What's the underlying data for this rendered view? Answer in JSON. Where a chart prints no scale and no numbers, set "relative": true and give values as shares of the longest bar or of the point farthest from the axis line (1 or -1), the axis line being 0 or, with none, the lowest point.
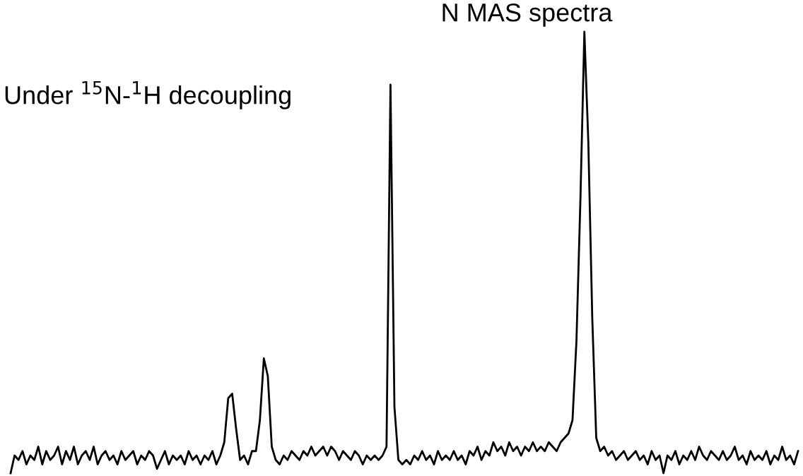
{
  "chart_data": {
    "type": "line",
    "title": "N MAS spectra",
    "subtitle": "Under $^{15}$N-$^{1}$H decoupling",
    "relative": true,
    "categories": [
      null,
      null,
      null,
      null,
      null,
      null,
      null,
      null,
      null,
      null,
      null,
      null,
      null,
      null,
      null,
      null,
      null,
      null,
      null,
      null,
      null,
      null,
      null,
      null,
      null,
      null,
      null,
      null,
      null,
      null,
      null,
      null,
      null,
      null,
      null,
      null,
      null,
      null,
      null,
      null,
      null,
      null,
      null,
      null,
      null,
      null,
      null,
      null,
      null,
      null,
      null,
      null,
      null,
      null,
      null,
      null,
      null,
      null,
      null,
      null,
      null,
      null,
      null,
      null,
      null,
      null,
      null,
      null,
      null,
      null,
      null,
      null,
      null,
      null,
      null,
      null,
      null,
      null,
      null,
      null,
      null,
      null,
      null,
      null,
      null,
      null,
      null,
      null,
      null,
      null,
      null,
      null,
      null,
      null,
      null,
      null,
      null,
      null,
      null,
      null,
      null,
      null,
      null,
      null,
      null,
      null,
      null,
      null,
      null,
      null,
      null,
      null,
      null,
      null,
      null,
      null,
      null,
      null,
      null,
      null,
      null,
      null,
      null,
      null,
      null,
      null,
      null,
      null,
      null,
      null,
      null,
      null,
      null,
      null,
      null,
      null,
      null,
      null,
      null,
      null,
      null,
      null,
      null,
      null,
      null,
      null,
      null,
      null,
      null,
      null,
      null,
      null,
      null,
      null,
      null,
      null,
      null,
      null,
      null,
      null,
      null,
      null,
      null,
      null,
      null,
      null,
      null,
      null,
      null,
      null,
      null,
      null,
      null,
      null,
      null,
      null,
      null,
      null,
      null,
      null,
      null,
      null,
      null,
      null,
      null,
      null,
      null,
      null,
      null,
      null,
      null,
      null,
      null,
      null,
      null,
      null,
      null,
      null,
      null,
      null
    ],
    "series": [
      {
        "color": "#000000",
        "values": [
          0.0,
          0.04,
          0.03,
          0.05,
          0.02,
          0.04,
          0.03,
          0.06,
          0.02,
          0.05,
          0.03,
          0.04,
          0.06,
          0.02,
          0.05,
          0.03,
          0.06,
          0.02,
          0.04,
          0.05,
          0.03,
          0.06,
          0.02,
          0.04,
          0.05,
          0.03,
          0.04,
          0.02,
          0.05,
          0.03,
          0.04,
          0.05,
          0.02,
          0.04,
          0.03,
          0.05,
          0.04,
          0.01,
          0.03,
          0.05,
          0.02,
          0.04,
          0.03,
          0.04,
          0.02,
          0.05,
          0.03,
          0.04,
          0.02,
          0.04,
          0.03,
          0.05,
          0.02,
          0.04,
          0.07,
          0.17,
          0.18,
          0.1,
          0.03,
          0.04,
          0.02,
          0.05,
          0.05,
          0.12,
          0.26,
          0.22,
          0.06,
          0.03,
          0.02,
          0.04,
          0.03,
          0.05,
          0.04,
          0.03,
          0.05,
          0.04,
          0.06,
          0.04,
          0.05,
          0.06,
          0.04,
          0.06,
          0.05,
          0.03,
          0.05,
          0.04,
          0.03,
          0.05,
          0.04,
          0.02,
          0.04,
          0.03,
          0.04,
          0.03,
          0.04,
          0.06,
          0.88,
          0.15,
          0.03,
          0.02,
          0.03,
          0.02,
          0.04,
          0.03,
          0.05,
          0.03,
          0.04,
          0.02,
          0.05,
          0.03,
          0.04,
          0.03,
          0.05,
          0.03,
          0.04,
          0.02,
          0.05,
          0.04,
          0.06,
          0.03,
          0.05,
          0.04,
          0.07,
          0.05,
          0.06,
          0.04,
          0.07,
          0.05,
          0.06,
          0.04,
          0.06,
          0.05,
          0.07,
          0.05,
          0.06,
          0.05,
          0.07,
          0.06,
          0.05,
          0.07,
          0.08,
          0.09,
          0.12,
          0.3,
          0.62,
          1.0,
          0.75,
          0.35,
          0.08,
          0.05,
          0.06,
          0.04,
          0.05,
          0.03,
          0.04,
          0.05,
          0.03,
          0.04,
          0.05,
          0.03,
          0.04,
          0.02,
          0.05,
          0.03,
          0.04,
          0.0,
          0.04,
          0.03,
          0.05,
          0.02,
          0.04,
          0.03,
          0.05,
          0.03,
          0.06,
          0.04,
          0.03,
          0.05,
          0.04,
          0.03,
          0.05,
          0.03,
          0.04,
          0.06,
          0.03,
          0.04,
          0.02,
          0.05,
          0.03,
          0.04,
          0.03,
          0.05,
          0.02,
          0.04,
          0.03,
          0.06,
          0.03,
          0.04,
          0.02,
          0.05
        ]
      }
    ]
  }
}
